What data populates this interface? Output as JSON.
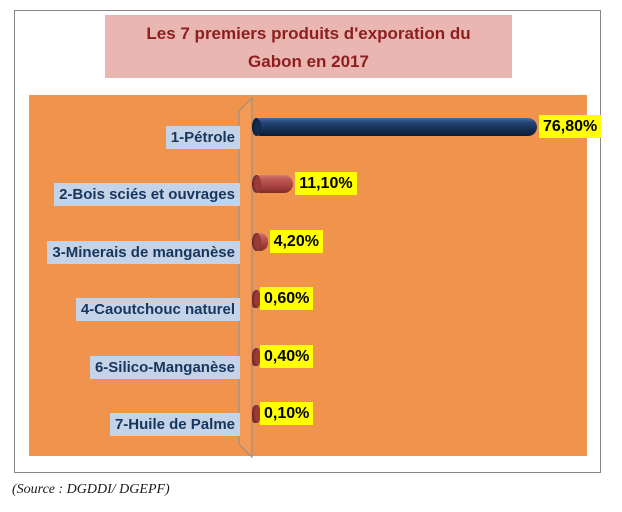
{
  "title": {
    "line1": "Les 7 premiers produits d'exporation du",
    "line2": "Gabon en 2017"
  },
  "source": "(Source : DGDDI/ DGEPF)",
  "chart_data": {
    "type": "bar",
    "orientation": "horizontal",
    "style": "3d-cylinder",
    "title": "Les 7 premiers produits d'exporation du Gabon en 2017",
    "categories": [
      "1-Pétrole",
      "2-Bois sciés et ouvrages",
      "3-Minerais de manganèse",
      "4-Caoutchouc naturel",
      "6-Silico-Manganèse",
      "7-Huile de Palme"
    ],
    "values": [
      76.8,
      11.1,
      4.2,
      0.6,
      0.4,
      0.1
    ],
    "value_labels": [
      "76,80%",
      "11,10%",
      "4,20%",
      "0,60%",
      "0,40%",
      "0,10%"
    ],
    "xlim": [
      0,
      80
    ],
    "legend": "none",
    "grid": "off",
    "bar_colors": [
      "#1E3C66",
      "#B84A47",
      "#B84A47",
      "#B84A47",
      "#B84A47",
      "#B84A47"
    ]
  },
  "colors": {
    "plot_background": "#F0934C",
    "title_background": "#E9B6B2",
    "title_text": "#8E1E1E",
    "category_label_background": "#C4D3E7",
    "category_label_text": "#17365D",
    "value_label_background": "#FFFF00",
    "value_label_text": "#000000",
    "bar_petrole": "#1E3C66",
    "bar_others": "#B84A47",
    "frame_border": "#868686"
  }
}
